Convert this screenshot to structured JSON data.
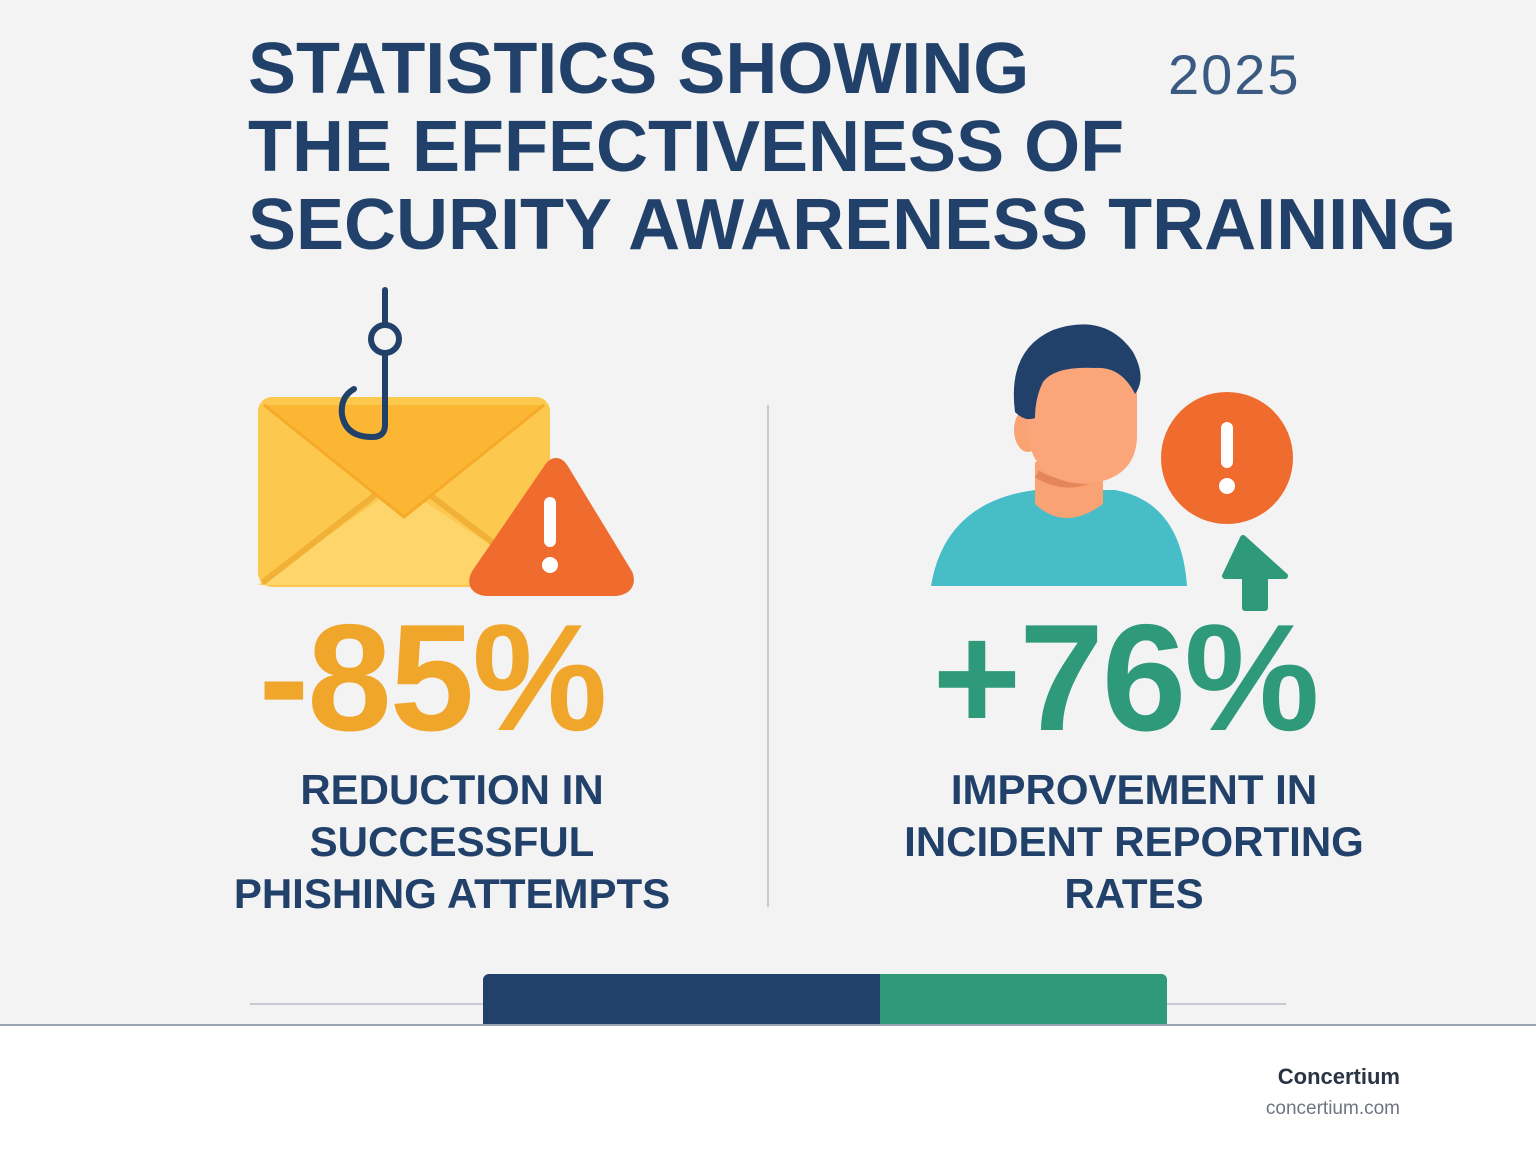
{
  "header": {
    "title_lines": [
      "STATISTICS SHOWING",
      "THE EFFECTIVENESS OF",
      "SECURITY AWARENESS TRAINING"
    ],
    "year": "2025"
  },
  "stats": [
    {
      "value": "-85%",
      "description_lines": [
        "REDUCTION IN",
        "SUCCESSFUL",
        "PHISHING ATTEMPTS"
      ],
      "color": "#f0a52b",
      "icon": "phishing-email-icon"
    },
    {
      "value": "+76%",
      "description_lines": [
        "IMPROVEMENT IN",
        "INCIDENT REPORTING",
        "RATES"
      ],
      "color": "#2f9a79",
      "icon": "person-alert-icon"
    }
  ],
  "progress": {
    "segments": [
      {
        "color": "#22416a",
        "fraction": 0.58
      },
      {
        "color": "#2f9a79",
        "fraction": 0.42
      }
    ]
  },
  "footer": {
    "brand": "Concertium",
    "domain": "concertium.com"
  },
  "colors": {
    "navy": "#22416a",
    "orange": "#f0a52b",
    "alert_orange": "#ef6c2e",
    "green": "#2f9a79",
    "teal_shirt": "#47bdc8",
    "skin": "#f9a274"
  }
}
